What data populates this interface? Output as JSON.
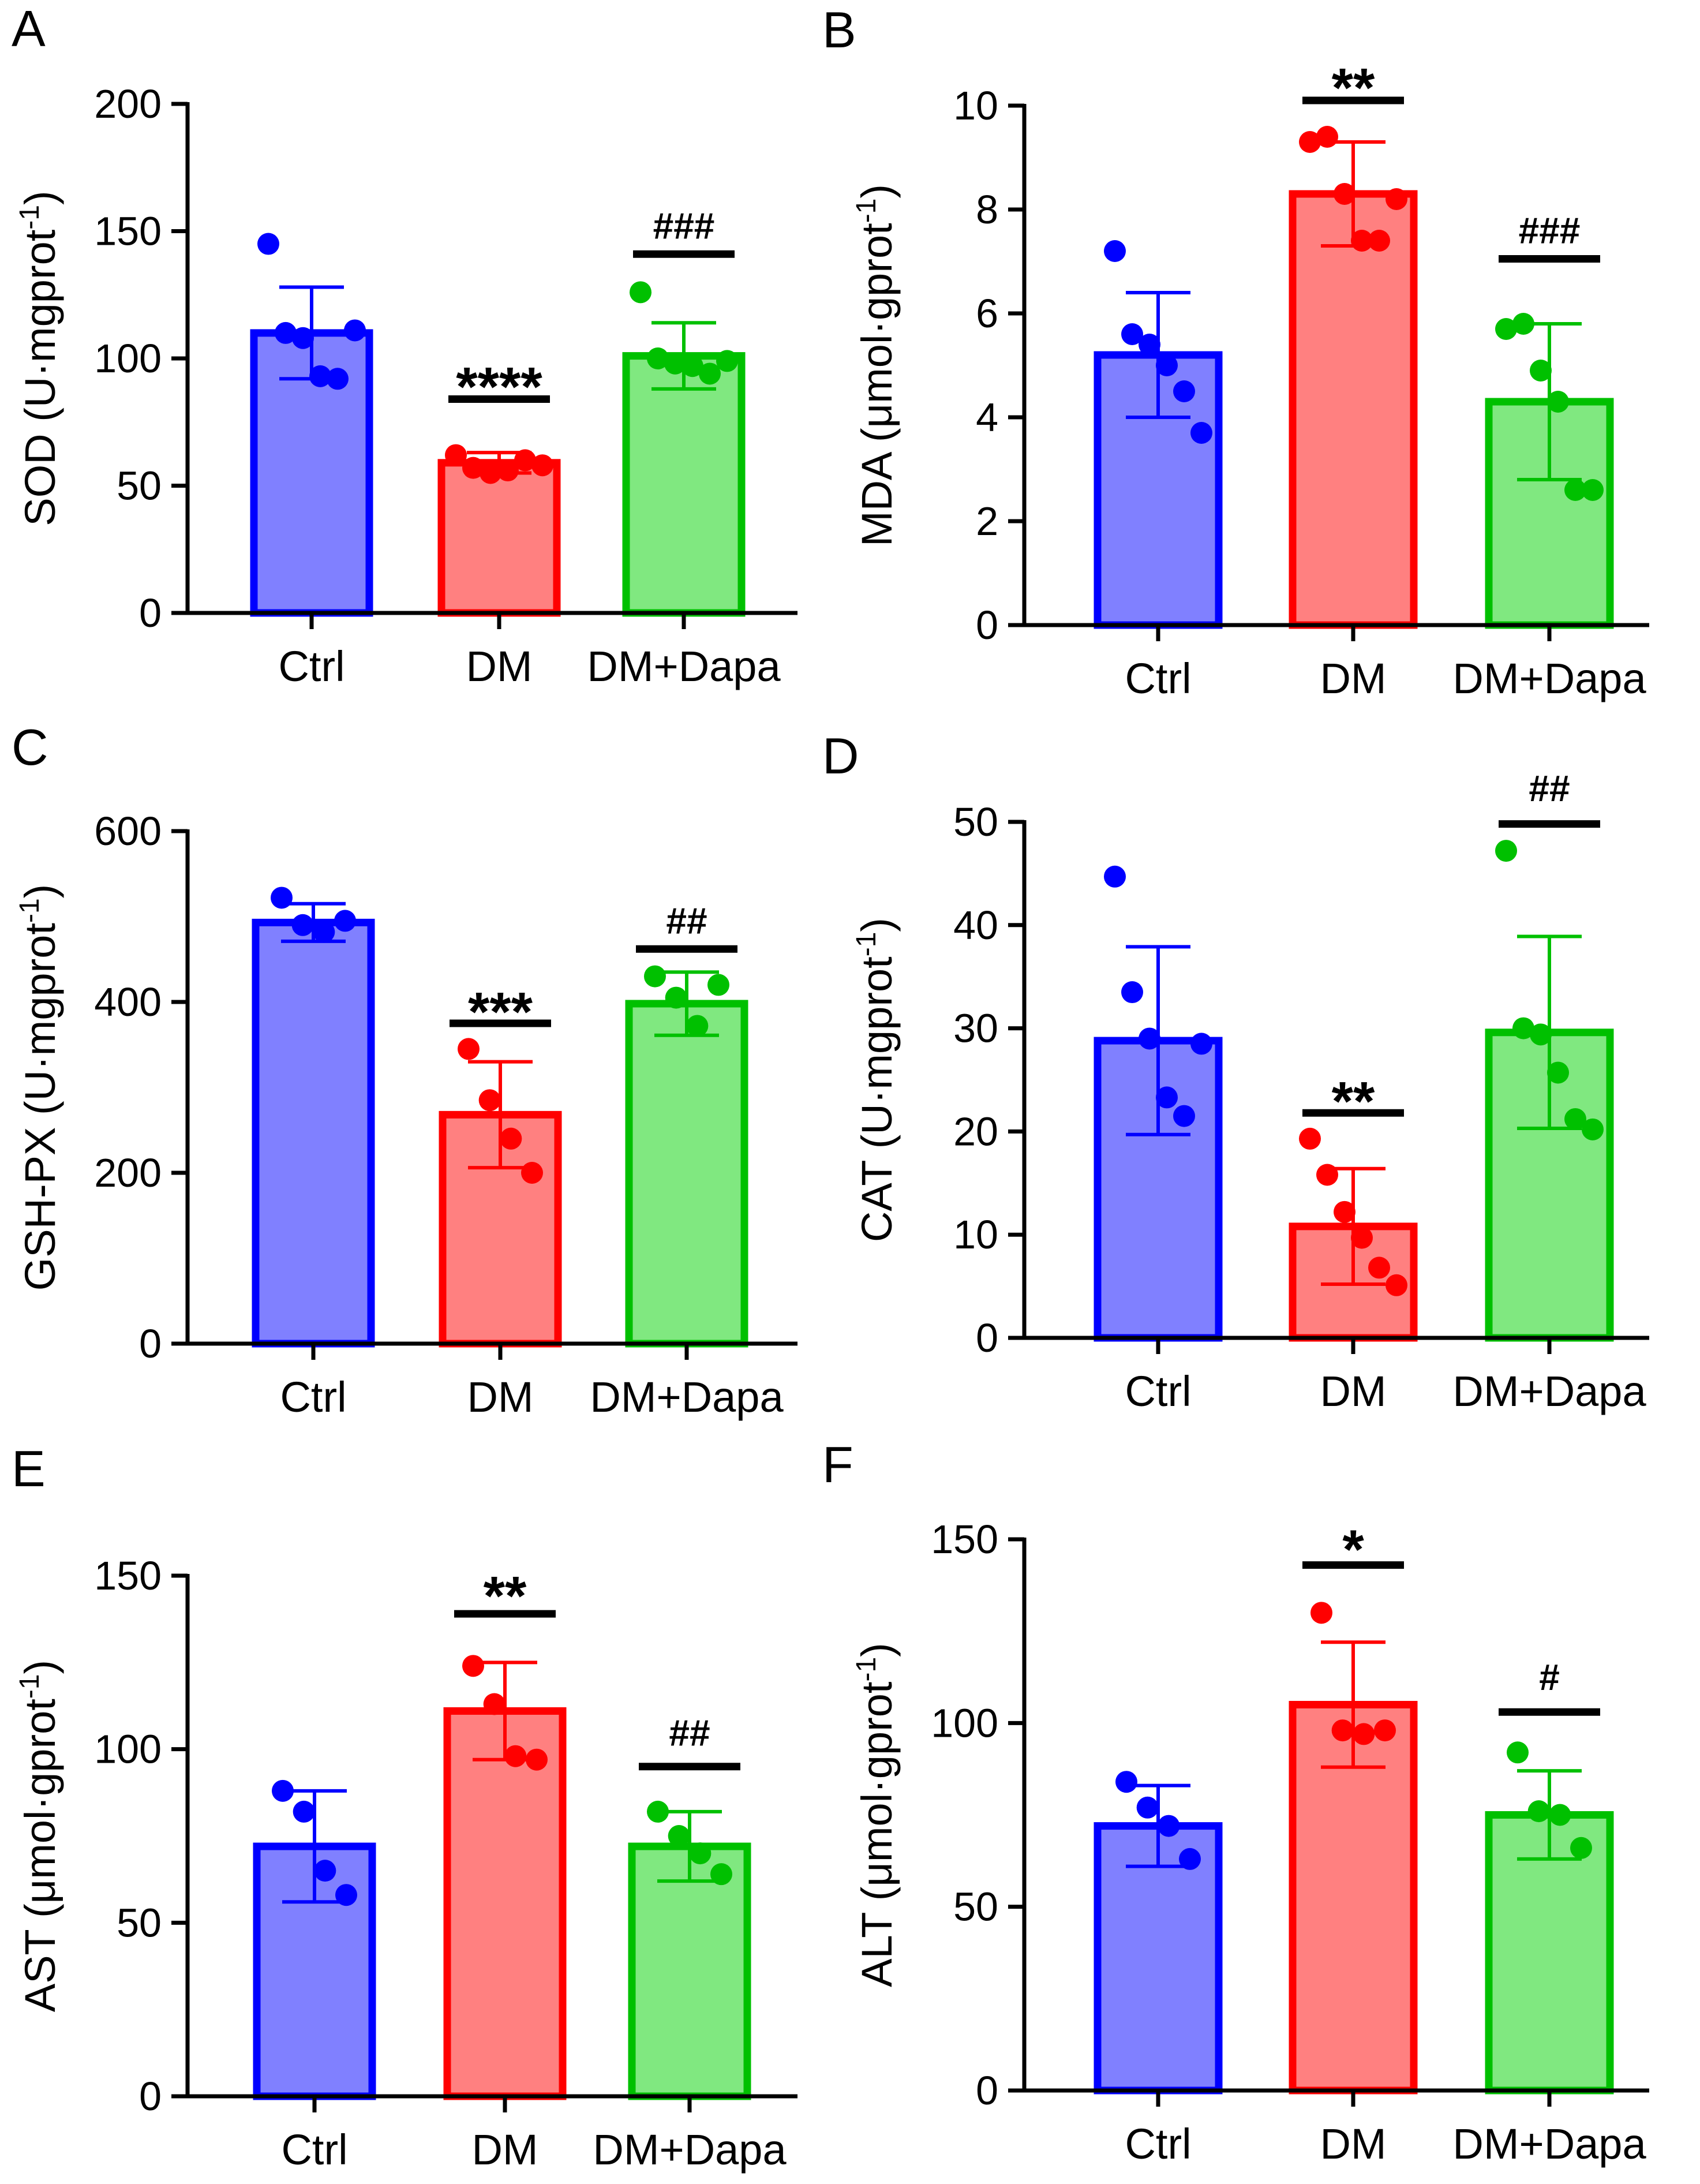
{
  "figure": {
    "group_colors": {
      "Ctrl": "#0000ff",
      "DM": "#ff0000",
      "DM+Dapa": "#00c000"
    },
    "fill_colors": {
      "Ctrl": "#8080ff",
      "DM": "#ff8080",
      "DM+Dapa": "#80e880"
    }
  },
  "chart_data": [
    {
      "type": "bar",
      "panel_label": "A",
      "ylabel": "SOD (U·mgprot",
      "ylabel_sup": "-1",
      "ylabel_close": ")",
      "ylim": [
        0,
        200
      ],
      "yticks": [
        "0",
        "50",
        "100",
        "150",
        "200"
      ],
      "categories": [
        "Ctrl",
        "DM",
        "DM+Dapa"
      ],
      "values": [
        110,
        59,
        101
      ],
      "sd": [
        18,
        4,
        13
      ],
      "points": [
        [
          145,
          110,
          108,
          93,
          92,
          111
        ],
        [
          62,
          57,
          55,
          56,
          60,
          58
        ],
        [
          126,
          100,
          98,
          97,
          94,
          99
        ]
      ],
      "significance": [
        "",
        "****",
        "###"
      ],
      "sig_bar_values": [
        "",
        84,
        141
      ],
      "sig_text_values": [
        "",
        90,
        147
      ]
    },
    {
      "type": "bar",
      "panel_label": "B",
      "ylabel": "MDA (μmol·gprot",
      "ylabel_sup": "-1",
      "ylabel_close": ")",
      "ylim": [
        0,
        10
      ],
      "yticks": [
        "0",
        "2",
        "4",
        "6",
        "8",
        "10"
      ],
      "categories": [
        "Ctrl",
        "DM",
        "DM+Dapa"
      ],
      "values": [
        5.2,
        8.3,
        4.3
      ],
      "sd": [
        1.2,
        1.0,
        1.5
      ],
      "points": [
        [
          7.2,
          5.6,
          5.4,
          5.0,
          4.5,
          3.7
        ],
        [
          9.3,
          9.4,
          8.3,
          7.4,
          7.4,
          8.2
        ],
        [
          5.7,
          5.8,
          4.9,
          4.3,
          2.6,
          2.6
        ]
      ],
      "significance": [
        "",
        "**",
        "###"
      ],
      "sig_bar_values": [
        "",
        10.1,
        7.05
      ],
      "sig_text_values": [
        "",
        10.4,
        7.35
      ]
    },
    {
      "type": "bar",
      "panel_label": "C",
      "ylabel": "GSH-PX (U·mgprot",
      "ylabel_sup": "-1",
      "ylabel_close": ")",
      "ylim": [
        0,
        600
      ],
      "yticks": [
        "0",
        "200",
        "400",
        "600"
      ],
      "categories": [
        "Ctrl",
        "DM",
        "DM+Dapa"
      ],
      "values": [
        493,
        268,
        398
      ],
      "sd": [
        22,
        62,
        37
      ],
      "points": [
        [
          522,
          490,
          482,
          495
        ],
        [
          345,
          285,
          240,
          200
        ],
        [
          430,
          405,
          372,
          420
        ]
      ],
      "significance": [
        "",
        "***",
        "##"
      ],
      "sig_bar_values": [
        "",
        375,
        462
      ],
      "sig_text_values": [
        "",
        392,
        480
      ]
    },
    {
      "type": "bar",
      "panel_label": "D",
      "ylabel": "CAT (U·mgprot",
      "ylabel_sup": "-1",
      "ylabel_close": ")",
      "ylim": [
        0,
        50
      ],
      "yticks": [
        "0",
        "10",
        "20",
        "30",
        "40",
        "50"
      ],
      "categories": [
        "Ctrl",
        "DM",
        "DM+Dapa"
      ],
      "values": [
        28.8,
        10.8,
        29.6
      ],
      "sd": [
        9.1,
        5.6,
        9.3
      ],
      "points": [
        [
          44.7,
          33.5,
          29.0,
          23.3,
          21.5,
          28.5
        ],
        [
          19.3,
          15.8,
          12.2,
          9.7,
          6.8,
          5.1
        ],
        [
          47.2,
          30.0,
          29.4,
          25.7,
          21.2,
          20.2
        ]
      ],
      "significance": [
        "",
        "**",
        "##"
      ],
      "sig_bar_values": [
        "",
        21.8,
        49.8
      ],
      "sig_text_values": [
        "",
        23.2,
        52.0
      ]
    },
    {
      "type": "bar",
      "panel_label": "E",
      "ylabel": "AST (μmol·gprot",
      "ylabel_sup": "-1",
      "ylabel_close": ")",
      "ylim": [
        0,
        150
      ],
      "yticks": [
        "0",
        "50",
        "100",
        "150"
      ],
      "categories": [
        "Ctrl",
        "DM",
        "DM+Dapa"
      ],
      "values": [
        72,
        111,
        72
      ],
      "sd": [
        16,
        14,
        10
      ],
      "points": [
        [
          88,
          82,
          65,
          58
        ],
        [
          124,
          113,
          98,
          97
        ],
        [
          82,
          75,
          70,
          64
        ]
      ],
      "significance": [
        "",
        "**",
        "##"
      ],
      "sig_bar_values": [
        "",
        139,
        95
      ],
      "sig_text_values": [
        "",
        145,
        101
      ]
    },
    {
      "type": "bar",
      "panel_label": "F",
      "ylabel": "ALT (μmol·gprot",
      "ylabel_sup": "-1",
      "ylabel_close": ")",
      "ylim": [
        0,
        150
      ],
      "yticks": [
        "0",
        "50",
        "100",
        "150"
      ],
      "categories": [
        "Ctrl",
        "DM",
        "DM+Dapa"
      ],
      "values": [
        72,
        105,
        75
      ],
      "sd": [
        11,
        17,
        12
      ],
      "points": [
        [
          84,
          77,
          72,
          63
        ],
        [
          130,
          98,
          97,
          98
        ],
        [
          92,
          76,
          75,
          66
        ]
      ],
      "significance": [
        "",
        "*",
        "#"
      ],
      "sig_bar_values": [
        "",
        143,
        103
      ],
      "sig_text_values": [
        "",
        148,
        109
      ]
    }
  ]
}
